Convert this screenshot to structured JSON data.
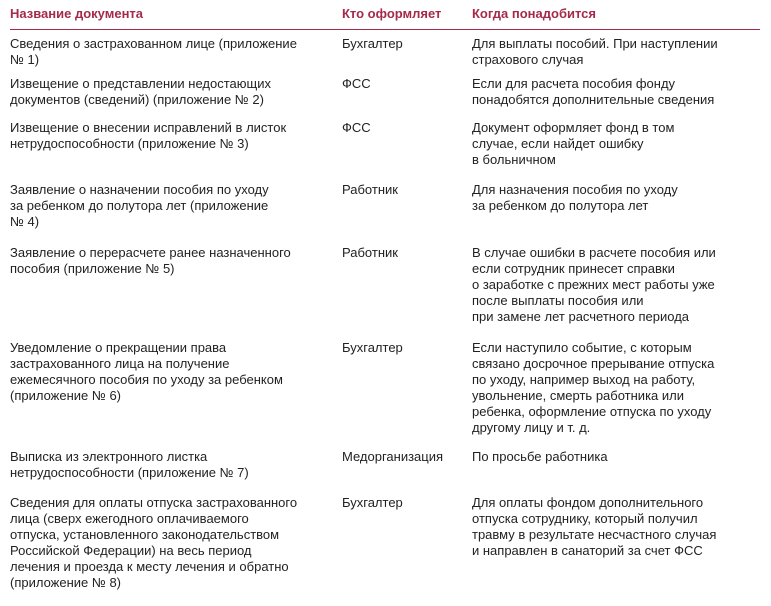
{
  "table": {
    "headers": [
      "Название документа",
      "Кто оформляет",
      "Когда понадобится"
    ],
    "accent_color": "#a52a4a",
    "rows": [
      {
        "name": "Сведения о застрахованном лице (приложение\n№ 1)",
        "who": "Бухгалтер",
        "when": "Для выплаты пособий. При наступлении\nстрахового случая"
      },
      {
        "name": "Извещение о представлении недостающих\nдокументов (сведений) (приложение № 2)",
        "who": "ФСС",
        "when": "Если для расчета пособия фонду\nпонадобятся дополнительные сведения"
      },
      {
        "name": "Извещение о внесении исправлений в листок\nнетрудоспособности (приложение № 3)",
        "who": "ФСС",
        "when": "Документ оформляет фонд в том\nслучае, если найдет ошибку\nв больничном"
      },
      {
        "name": "Заявление о назначении пособия по уходу\nза ребенком до полутора лет (приложение\n№ 4)",
        "who": "Работник",
        "when": "Для назначения пособия по уходу\nза ребенком до полутора лет"
      },
      {
        "name": "Заявление о перерасчете ранее назначенного\nпособия (приложение № 5)",
        "who": "Работник",
        "when": "В случае ошибки в расчете пособия или\nесли сотрудник принесет справки\nо заработке с прежних мест работы уже\nпосле выплаты пособия или\nпри замене лет расчетного периода"
      },
      {
        "name": "Уведомление о прекращении права\nзастрахованного лица на получение\nежемесячного пособия по уходу за ребенком\n(приложение № 6)",
        "who": "Бухгалтер",
        "when": "Если наступило событие, с которым\nсвязано досрочное прерывание отпуска\nпо уходу, например выход на работу,\nувольнение, смерть работника или\nребенка, оформление отпуска по уходу\nдругому лицу и т. д."
      },
      {
        "name": "Выписка из электронного листка\nнетрудоспособности (приложение № 7)",
        "who": "Медорганизация",
        "when": "По просьбе работника"
      },
      {
        "name": "Сведения для оплаты отпуска застрахованного\nлица (сверх ежегодного оплачиваемого\nотпуска, установленного законодательством\nРоссийской Федерации) на весь период\nлечения и проезда к месту лечения и обратно\n(приложение № 8)",
        "who": "Бухгалтер",
        "when": "Для оплаты фондом дополнительного\nотпуска сотруднику, который получил\nтравму в результате несчастного случая\nи направлен в санаторий за счет ФСС"
      }
    ]
  }
}
